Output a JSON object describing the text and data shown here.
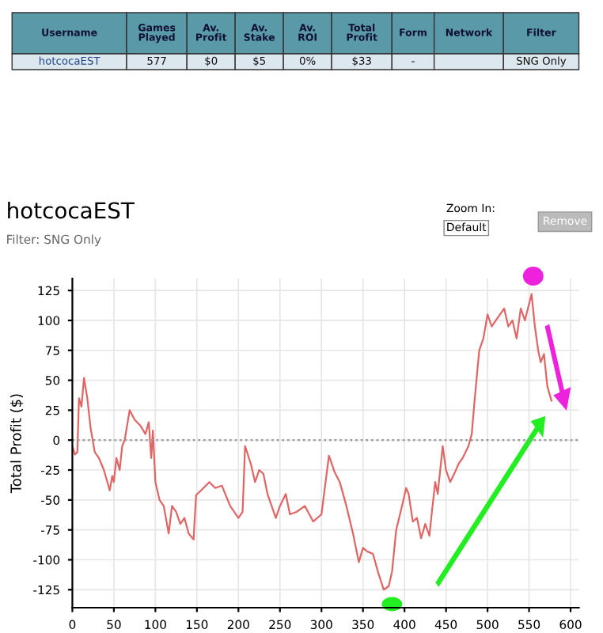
{
  "chart_data": {
    "type": "line",
    "title": "hotcocaEST",
    "subtitle": "Filter: SNG Only",
    "ylabel": "Total Profit ($)",
    "annotations": [
      "Username",
      "Games Played",
      "Av. Profit",
      "Av. Stake",
      "Av. ROI",
      "Total Profit",
      "Form",
      "Network",
      "Filter",
      "hotcocaEST",
      "577",
      "$0",
      "$5",
      "0%",
      "$33",
      "-",
      "SNG Only",
      "Zoom In:",
      "Default",
      "Remove"
    ],
    "series": [
      {
        "color": "#e06666",
        "x": [
          0,
          3,
          6,
          8,
          11,
          14,
          18,
          22,
          27,
          32,
          38,
          45,
          48,
          50,
          53,
          57,
          60,
          63,
          69,
          75,
          82,
          88,
          92,
          95,
          97,
          100,
          105,
          110,
          116,
          120,
          125,
          130,
          135,
          140,
          146,
          149,
          155,
          165,
          172,
          180,
          190,
          200,
          205,
          208,
          215,
          220,
          225,
          230,
          235,
          240,
          245,
          250,
          257,
          262,
          270,
          280,
          290,
          300,
          309,
          316,
          322,
          330,
          338,
          345,
          350,
          355,
          362,
          368,
          375,
          381,
          385,
          390,
          397,
          402,
          405,
          410,
          415,
          420,
          425,
          430,
          433,
          437,
          440,
          446,
          450,
          455,
          460,
          465,
          470,
          477,
          481,
          484,
          490,
          495,
          500,
          505,
          510,
          515,
          520,
          525,
          530,
          535,
          540,
          545,
          553,
          557,
          561,
          564,
          568,
          572,
          577
        ],
        "values": [
          -5,
          -12,
          -10,
          35,
          28,
          52,
          35,
          10,
          -10,
          -15,
          -25,
          -42,
          -30,
          -35,
          -15,
          -25,
          -5,
          0,
          25,
          17,
          12,
          5,
          15,
          -15,
          8,
          -35,
          -50,
          -55,
          -78,
          -55,
          -60,
          -70,
          -65,
          -78,
          -83,
          -46,
          -42,
          -35,
          -40,
          -38,
          -55,
          -65,
          -60,
          -5,
          -20,
          -35,
          -25,
          -28,
          -45,
          -55,
          -65,
          -55,
          -45,
          -62,
          -60,
          -55,
          -68,
          -62,
          -13,
          -27,
          -35,
          -55,
          -78,
          -102,
          -90,
          -93,
          -95,
          -110,
          -125,
          -122,
          -110,
          -75,
          -55,
          -40,
          -45,
          -68,
          -65,
          -82,
          -70,
          -80,
          -60,
          -35,
          -45,
          -5,
          -25,
          -35,
          -28,
          -20,
          -15,
          -5,
          5,
          30,
          75,
          85,
          105,
          95,
          100,
          105,
          110,
          95,
          100,
          85,
          110,
          100,
          122,
          95,
          75,
          65,
          72,
          45,
          33
        ]
      }
    ],
    "xlim": [
      0,
      610
    ],
    "ylim": [
      -140,
      135
    ],
    "xticks": [
      0,
      50,
      100,
      150,
      200,
      250,
      300,
      350,
      400,
      450,
      500,
      550,
      600
    ],
    "yticks": [
      -125,
      -100,
      -75,
      -50,
      -25,
      0,
      25,
      50,
      75,
      100,
      125
    ],
    "grid": true,
    "legend": false,
    "marker": "none",
    "line_style": "solid",
    "ref_lines": [
      {
        "axis": "y",
        "value": 0,
        "color": "#999999",
        "line_style": "dotted"
      }
    ]
  }
}
